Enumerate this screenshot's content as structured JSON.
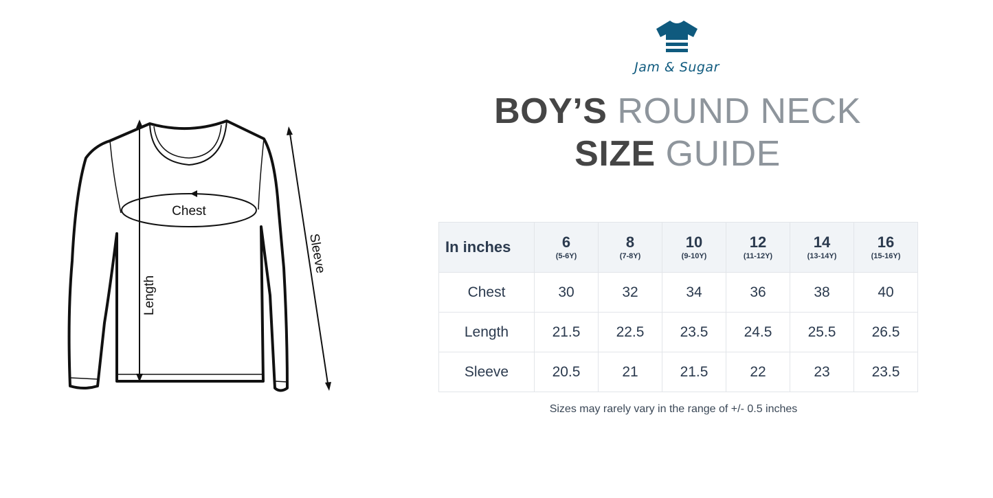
{
  "brand": {
    "name": "Jam & Sugar",
    "color": "#0f5a7e",
    "icon": "tshirt-icon"
  },
  "title": {
    "line1_bold": "BOY’S",
    "line1_light": "ROUND NECK",
    "line2_bold": "SIZE",
    "line2_light": "GUIDE"
  },
  "diagram": {
    "chest_label": "Chest",
    "length_label": "Length",
    "sleeve_label": "Sleeve"
  },
  "table": {
    "corner": "In inches",
    "sizes": [
      {
        "size": "6",
        "age": "(5-6Y)"
      },
      {
        "size": "8",
        "age": "(7-8Y)"
      },
      {
        "size": "10",
        "age": "(9-10Y)"
      },
      {
        "size": "12",
        "age": "(11-12Y)"
      },
      {
        "size": "14",
        "age": "(13-14Y)"
      },
      {
        "size": "16",
        "age": "(15-16Y)"
      }
    ],
    "rows": [
      {
        "label": "Chest",
        "values": [
          "30",
          "32",
          "34",
          "36",
          "38",
          "40"
        ]
      },
      {
        "label": "Length",
        "values": [
          "21.5",
          "22.5",
          "23.5",
          "24.5",
          "25.5",
          "26.5"
        ]
      },
      {
        "label": "Sleeve",
        "values": [
          "20.5",
          "21",
          "21.5",
          "22",
          "23",
          "23.5"
        ]
      }
    ]
  },
  "note": "Sizes may rarely vary in the range of +/- 0.5 inches"
}
